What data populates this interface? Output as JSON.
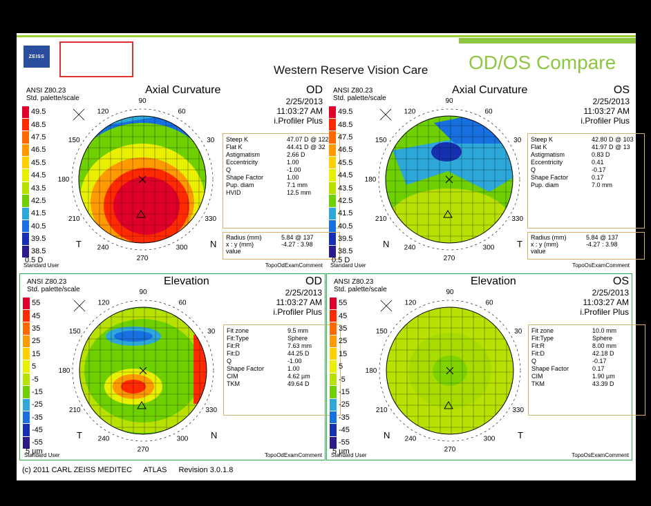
{
  "header": {
    "logo_text": "ZEISS",
    "clinic_name": "Western Reserve Vision Care",
    "mode_title": "OD/OS Compare"
  },
  "scales": {
    "axial": {
      "labels": [
        "49.5",
        "48.5",
        "47.5",
        "46.5",
        "45.5",
        "44.5",
        "43.5",
        "42.5",
        "41.5",
        "40.5",
        "39.5",
        "38.5"
      ],
      "colors": [
        "#e0002a",
        "#ff2a00",
        "#ff6a00",
        "#ff9a00",
        "#ffd000",
        "#e8f000",
        "#b8e000",
        "#6fd000",
        "#2ea8d8",
        "#1870e0",
        "#1530b0",
        "#2a1a8a"
      ],
      "unit": "0.5 D"
    },
    "elevation": {
      "labels": [
        "55",
        "45",
        "35",
        "25",
        "15",
        "5",
        "-5",
        "-15",
        "-25",
        "-35",
        "-45",
        "-55"
      ],
      "colors": [
        "#e0002a",
        "#ff2a00",
        "#ff6a00",
        "#ff9a00",
        "#ffd000",
        "#e8f000",
        "#b8e000",
        "#6fd000",
        "#2ea8d8",
        "#1870e0",
        "#1530b0",
        "#2a1a8a"
      ],
      "unit": "5 µm"
    }
  },
  "quadrants": [
    {
      "anis_line1": "ANSI Z80.23",
      "anis_line2": "Std. palette/scale",
      "title": "Axial Curvature",
      "eye": "OD",
      "date": "2/25/2013",
      "time": "11:03:27 AM",
      "device": "i.Profiler Plus",
      "info": [
        {
          "k": "Steep K",
          "v": "47.07 D @ 122"
        },
        {
          "k": "Flat K",
          "v": "44.41 D @ 32"
        },
        {
          "k": "Astigmatism",
          "v": "2.66 D"
        },
        {
          "k": "Eccentricity",
          "v": "1.00"
        },
        {
          "k": "Q",
          "v": "-1.00"
        },
        {
          "k": "Shape Factor",
          "v": "1.00"
        },
        {
          "k": "Pup. diam",
          "v": "7.1 mm"
        },
        {
          "k": "HVID",
          "v": "12.5 mm"
        }
      ],
      "radius": {
        "k1": "Radius  (mm)",
        "v1": "5.84  @ 137",
        "k2": "x : y  (mm)",
        "v2": "-4.27 : 3.98",
        "k3": "value",
        "v3": ""
      },
      "user": "Standard User",
      "comment": "TopoOdExamComment",
      "left_label": "T",
      "right_label": "N"
    },
    {
      "anis_line1": "ANSI Z80.23",
      "anis_line2": "Std. palette/scale",
      "title": "Axial Curvature",
      "eye": "OS",
      "date": "2/25/2013",
      "time": "11:03:27 AM",
      "device": "i.Profiler Plus",
      "info": [
        {
          "k": "Steep K",
          "v": "42.80 D @ 103"
        },
        {
          "k": "Flat K",
          "v": "41.97 D @ 13"
        },
        {
          "k": "Astigmatism",
          "v": "0.83 D"
        },
        {
          "k": "Eccentricity",
          "v": "0.41"
        },
        {
          "k": "Q",
          "v": "-0.17"
        },
        {
          "k": "Shape Factor",
          "v": "0.17"
        },
        {
          "k": "Pup. diam",
          "v": "7.0 mm"
        }
      ],
      "radius": {
        "k1": "Radius  (mm)",
        "v1": "5.84  @ 137",
        "k2": "x : y  (mm)",
        "v2": "-4.27 : 3.98",
        "k3": "value",
        "v3": ""
      },
      "user": "Standard User",
      "comment": "TopoOsExamComment",
      "left_label": "N",
      "right_label": "T"
    },
    {
      "anis_line1": "ANSI Z80.23",
      "anis_line2": "Std. palette/scale",
      "title": "Elevation",
      "eye": "OD",
      "date": "2/25/2013",
      "time": "11:03:27 AM",
      "device": "i.Profiler Plus",
      "info": [
        {
          "k": "Fit zone",
          "v": "9.5 mm"
        },
        {
          "k": "Fit:Type",
          "v": "Sphere"
        },
        {
          "k": "Fit:R",
          "v": "7.63 mm"
        },
        {
          "k": "Fit:D",
          "v": "44.25 D"
        },
        {
          "k": "Q",
          "v": "-1.00"
        },
        {
          "k": "Shape Factor",
          "v": "1.00"
        },
        {
          "k": "CIM",
          "v": "4.62 µm"
        },
        {
          "k": "TKM",
          "v": "49.64 D"
        }
      ],
      "user": "Standard User",
      "comment": "TopoOdExamComment",
      "left_label": "T",
      "right_label": "N"
    },
    {
      "anis_line1": "ANSI Z80.23",
      "anis_line2": "Std. palette/scale",
      "title": "Elevation",
      "eye": "OS",
      "date": "2/25/2013",
      "time": "11:03:27 AM",
      "device": "i.Profiler Plus",
      "info": [
        {
          "k": "Fit zone",
          "v": "10.0 mm"
        },
        {
          "k": "Fit:Type",
          "v": "Sphere"
        },
        {
          "k": "Fit:R",
          "v": "8.00 mm"
        },
        {
          "k": "Fit:D",
          "v": "42.18 D"
        },
        {
          "k": "Q",
          "v": "-0.17"
        },
        {
          "k": "Shape Factor",
          "v": "0.17"
        },
        {
          "k": "CIM",
          "v": "1.90 µm"
        },
        {
          "k": "TKM",
          "v": "43.39 D"
        }
      ],
      "user": "Standard User",
      "comment": "TopoOsExamComment",
      "left_label": "N",
      "right_label": "T"
    }
  ],
  "meridians": [
    "90",
    "60",
    "30",
    "330",
    "300",
    "270",
    "240",
    "210",
    "180",
    "150",
    "120"
  ],
  "footer": {
    "copyright": "(c) 2011 CARL ZEISS MEDITEC",
    "product": "ATLAS",
    "revision": "Revision  3.0.1.8"
  }
}
